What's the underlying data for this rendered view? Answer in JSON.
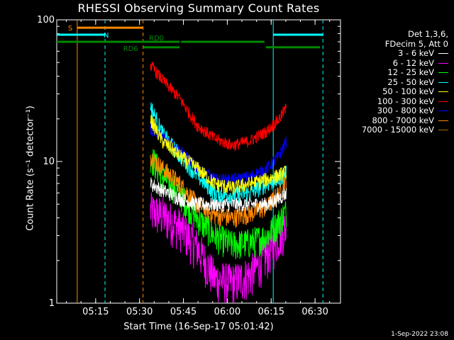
{
  "chart_data": {
    "type": "line",
    "title": "RHESSI Observing Summary Count Rates",
    "xlabel": "Start Time (16-Sep-17 05:01:42)",
    "ylabel": "Count Rate (s⁻¹ detector⁻¹)",
    "yscale": "log",
    "ylim": [
      1,
      100
    ],
    "xlim_minutes": [
      0,
      97
    ],
    "x_tick_minutes": [
      13.3,
      28.3,
      43.3,
      58.3,
      73.3,
      88.3
    ],
    "x_tick_labels": [
      "05:15",
      "05:30",
      "05:45",
      "06:00",
      "06:15",
      "06:30"
    ],
    "y_tick_labels": [
      "1",
      "10",
      "100"
    ],
    "y_tick_values": [
      1,
      10,
      100
    ],
    "legend_position": "right",
    "legend_header": [
      "Det 1,3,6,",
      "FDecim 5, Att 0"
    ],
    "series": [
      {
        "name": "3 - 6 keV",
        "color": "#ffffff",
        "x": [
          32,
          36,
          42,
          48,
          54,
          60,
          66,
          72,
          76,
          78.5
        ],
        "values": [
          7,
          6.3,
          5.5,
          5,
          5,
          5,
          5,
          5,
          5.5,
          6
        ]
      },
      {
        "name": "6 - 12 keV",
        "color": "#ff00ff",
        "x": [
          32,
          36,
          42,
          48,
          54,
          60,
          66,
          72,
          76,
          78.5
        ],
        "values": [
          4.5,
          4.2,
          3.5,
          2.5,
          1.5,
          1.4,
          1.6,
          2.2,
          3,
          3.5
        ]
      },
      {
        "name": "12 - 25 keV",
        "color": "#00ff00",
        "x": [
          32,
          36,
          42,
          48,
          54,
          60,
          66,
          72,
          76,
          78.5
        ],
        "values": [
          11,
          8,
          6,
          4,
          3,
          2.6,
          2.7,
          3,
          3.8,
          4.5
        ]
      },
      {
        "name": "25 - 50 keV",
        "color": "#00ffff",
        "x": [
          32,
          36,
          42,
          48,
          54,
          60,
          66,
          72,
          76,
          78.5
        ],
        "values": [
          25,
          16,
          11,
          8,
          6,
          5.8,
          6,
          7,
          7.5,
          8.5
        ]
      },
      {
        "name": "50 - 100 keV",
        "color": "#ffff00",
        "x": [
          32,
          36,
          42,
          48,
          54,
          60,
          66,
          72,
          76,
          78.5
        ],
        "values": [
          20,
          14,
          11,
          9,
          7,
          6.5,
          7,
          7.5,
          8,
          8.5
        ]
      },
      {
        "name": "100 - 300 keV",
        "color": "#ff0000",
        "x": [
          32,
          36,
          42,
          48,
          54,
          60,
          66,
          72,
          76,
          78.5
        ],
        "values": [
          48,
          38,
          28,
          18,
          14.5,
          13,
          14,
          16.5,
          20,
          24
        ]
      },
      {
        "name": "300 - 800 keV",
        "color": "#0000ff",
        "x": [
          32,
          36,
          42,
          48,
          54,
          60,
          66,
          72,
          76,
          78.5
        ],
        "values": [
          17,
          15,
          12,
          9,
          7.5,
          7.5,
          7.8,
          9,
          11,
          14
        ]
      },
      {
        "name": "800 - 7000 keV",
        "color": "#ff8800",
        "x": [
          32,
          36,
          42,
          48,
          54,
          60,
          66,
          72,
          76,
          78.5
        ],
        "values": [
          11,
          9,
          7,
          5,
          4.2,
          4,
          4.3,
          4.8,
          6,
          7.5
        ]
      },
      {
        "name": "7000 - 15000 keV",
        "color": "#aa6600",
        "x": [],
        "values": []
      }
    ],
    "state_bars": [
      {
        "label": "S",
        "color": "#ff8800",
        "x_start": 7,
        "x_end": 29.5,
        "level": 88
      },
      {
        "label": "N",
        "color": "#00ffff",
        "x_start": 0,
        "x_end": 16.5,
        "level": 78.5
      },
      {
        "label": "N",
        "color": "#00ffff",
        "x_start": 74,
        "x_end": 91,
        "level": 78.5
      },
      {
        "label": "RD0",
        "color": "#008800",
        "x_start": 0,
        "x_end": 42,
        "level": 70
      },
      {
        "label": "RD0",
        "color": "#008800",
        "x_start": 42.5,
        "x_end": 71,
        "level": 70
      },
      {
        "label": "RD6",
        "color": "#008800",
        "x_start": 29.5,
        "x_end": 42,
        "level": 64
      },
      {
        "label": "RD6",
        "color": "#008800",
        "x_start": 71.5,
        "x_end": 90,
        "level": 64
      }
    ],
    "vertical_markers": [
      {
        "x": 7,
        "color": "#ff8800",
        "style": "solid"
      },
      {
        "x": 16.5,
        "color": "#00ffff",
        "style": "dashed"
      },
      {
        "x": 29.5,
        "color": "#ff8800",
        "style": "dashed"
      },
      {
        "x": 74,
        "color": "#00ffff",
        "style": "solid"
      },
      {
        "x": 91,
        "color": "#00ffff",
        "style": "dashed"
      }
    ],
    "grid": false
  },
  "footer_timestamp": "1-Sep-2022 23:08"
}
